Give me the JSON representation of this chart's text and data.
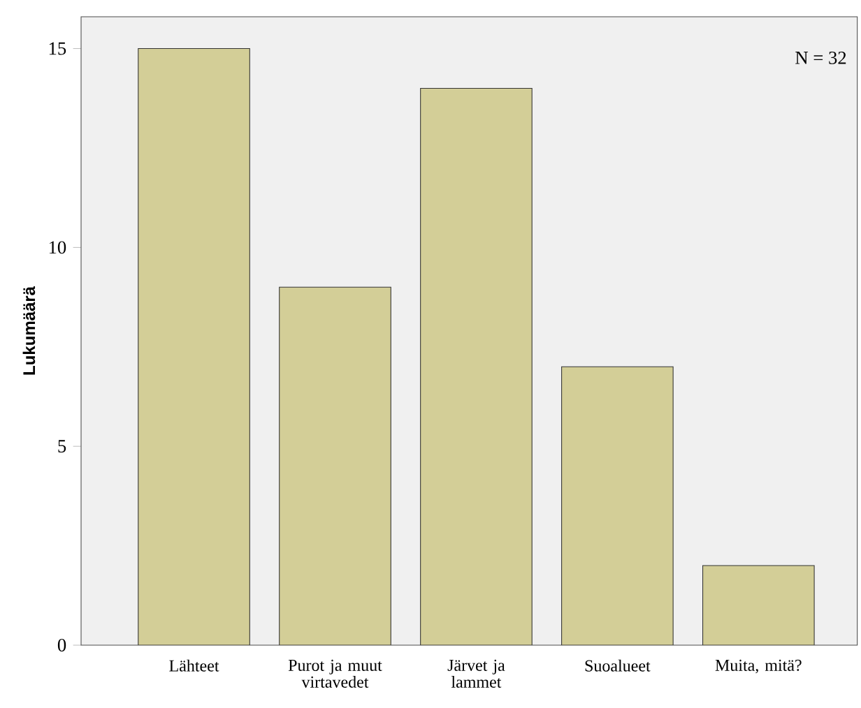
{
  "chart_data": {
    "type": "bar",
    "ylabel": "Lukumäärä",
    "categories": [
      "Lähteet",
      "Purot ja muut virtavedet",
      "Järvet ja lammet",
      "Suoalueet",
      "Muita, mitä?"
    ],
    "values": [
      15,
      9,
      14,
      7,
      2
    ],
    "color": "#d3ce97",
    "ylim": [
      0,
      15.8
    ],
    "yticks": [
      0,
      5,
      10,
      15
    ],
    "grid": false,
    "annotations": [
      "N = 32"
    ]
  }
}
